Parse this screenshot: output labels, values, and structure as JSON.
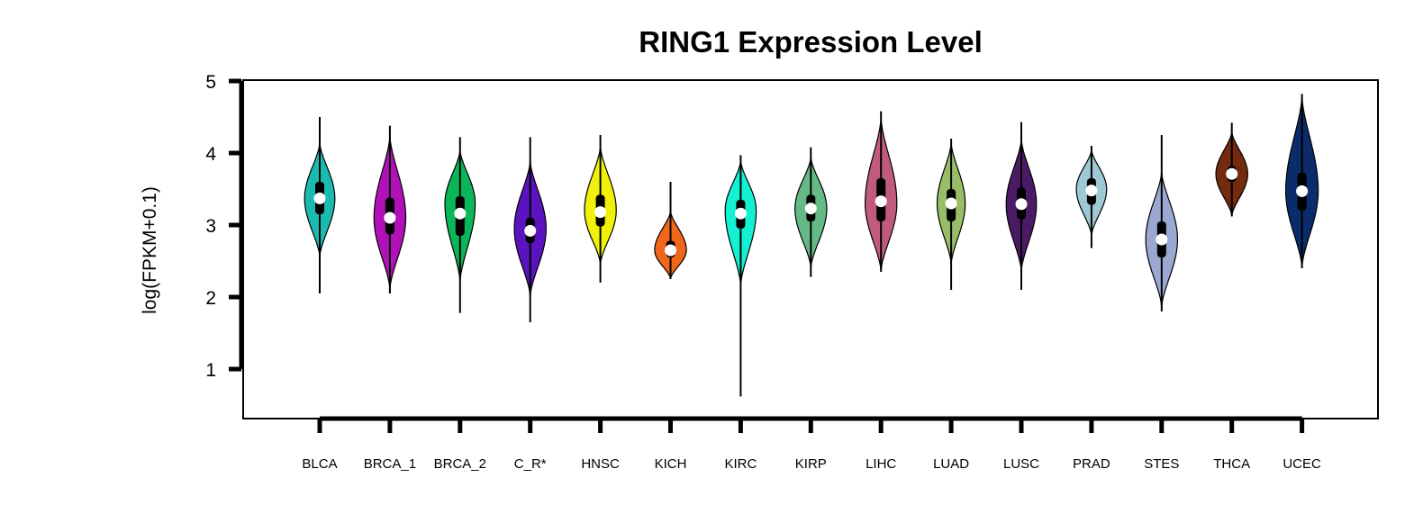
{
  "chart_data": {
    "type": "violin",
    "title": "RING1 Expression Level",
    "xlabel": "",
    "ylabel": "log(FPKM+0.1)",
    "ylim": [
      0.5,
      5.0
    ],
    "yticks": [
      1,
      2,
      3,
      4,
      5
    ],
    "grid": false,
    "legend": "none",
    "categories": [
      "BLCA",
      "BRCA_1",
      "BRCA_2",
      "C_R*",
      "HNSC",
      "KICH",
      "KIRC",
      "KIRP",
      "LIHC",
      "LUAD",
      "LUSC",
      "PRAD",
      "STES",
      "THCA",
      "UCEC"
    ],
    "series": [
      {
        "category": "BLCA",
        "color": "#1bbab0",
        "min": 2.05,
        "max": 4.5,
        "q1": 3.15,
        "median": 3.37,
        "q3": 3.6,
        "peak": 3.37,
        "width": 0.41,
        "body_low": 2.55,
        "body_high": 4.15
      },
      {
        "category": "BRCA_1",
        "color": "#b012b8",
        "min": 2.05,
        "max": 4.38,
        "q1": 2.87,
        "median": 3.1,
        "q3": 3.38,
        "peak": 3.1,
        "width": 0.43,
        "body_low": 2.1,
        "body_high": 4.25
      },
      {
        "category": "BRCA_2",
        "color": "#0bb55a",
        "min": 1.78,
        "max": 4.22,
        "q1": 2.85,
        "median": 3.16,
        "q3": 3.4,
        "peak": 3.3,
        "width": 0.41,
        "body_low": 2.2,
        "body_high": 4.05
      },
      {
        "category": "C_R*",
        "color": "#5b12bf",
        "min": 1.65,
        "max": 4.22,
        "q1": 2.75,
        "median": 2.92,
        "q3": 3.1,
        "peak": 2.95,
        "width": 0.43,
        "body_low": 2.0,
        "body_high": 3.9
      },
      {
        "category": "HNSC",
        "color": "#f0f00b",
        "min": 2.2,
        "max": 4.25,
        "q1": 2.98,
        "median": 3.18,
        "q3": 3.42,
        "peak": 3.2,
        "width": 0.43,
        "body_low": 2.45,
        "body_high": 4.1
      },
      {
        "category": "KICH",
        "color": "#f0661a",
        "min": 2.25,
        "max": 3.6,
        "q1": 2.55,
        "median": 2.65,
        "q3": 2.78,
        "peak": 2.65,
        "width": 0.43,
        "body_low": 2.25,
        "body_high": 3.2
      },
      {
        "category": "KIRC",
        "color": "#14f0d2",
        "min": 0.62,
        "max": 3.97,
        "q1": 2.95,
        "median": 3.16,
        "q3": 3.35,
        "peak": 3.2,
        "width": 0.42,
        "body_low": 2.15,
        "body_high": 3.9
      },
      {
        "category": "KIRP",
        "color": "#64b987",
        "min": 2.28,
        "max": 4.08,
        "q1": 3.05,
        "median": 3.23,
        "q3": 3.42,
        "peak": 3.23,
        "width": 0.43,
        "body_low": 2.4,
        "body_high": 3.95
      },
      {
        "category": "LIHC",
        "color": "#c05b7c",
        "min": 2.35,
        "max": 4.58,
        "q1": 3.05,
        "median": 3.33,
        "q3": 3.65,
        "peak": 3.3,
        "width": 0.43,
        "body_low": 2.35,
        "body_high": 4.5
      },
      {
        "category": "LUAD",
        "color": "#99bd66",
        "min": 2.1,
        "max": 4.2,
        "q1": 3.05,
        "median": 3.3,
        "q3": 3.5,
        "peak": 3.3,
        "width": 0.38,
        "body_low": 2.45,
        "body_high": 4.15
      },
      {
        "category": "LUSC",
        "color": "#4b1a64",
        "min": 2.1,
        "max": 4.43,
        "q1": 3.08,
        "median": 3.29,
        "q3": 3.52,
        "peak": 3.29,
        "width": 0.41,
        "body_low": 2.35,
        "body_high": 4.2
      },
      {
        "category": "PRAD",
        "color": "#9fc8d5",
        "min": 2.68,
        "max": 4.1,
        "q1": 3.28,
        "median": 3.48,
        "q3": 3.65,
        "peak": 3.5,
        "width": 0.41,
        "body_low": 2.85,
        "body_high": 4.05
      },
      {
        "category": "STES",
        "color": "#9ba9d2",
        "min": 1.8,
        "max": 4.25,
        "q1": 2.55,
        "median": 2.8,
        "q3": 3.05,
        "peak": 2.8,
        "width": 0.43,
        "body_low": 1.85,
        "body_high": 3.75
      },
      {
        "category": "THCA",
        "color": "#742a0e",
        "min": 3.12,
        "max": 4.42,
        "q1": 3.6,
        "median": 3.71,
        "q3": 3.82,
        "peak": 3.71,
        "width": 0.43,
        "body_low": 3.12,
        "body_high": 4.3
      },
      {
        "category": "UCEC",
        "color": "#0a2c6a",
        "min": 2.4,
        "max": 4.82,
        "q1": 3.2,
        "median": 3.47,
        "q3": 3.73,
        "peak": 3.47,
        "width": 0.44,
        "body_low": 2.4,
        "body_high": 4.8
      }
    ]
  }
}
